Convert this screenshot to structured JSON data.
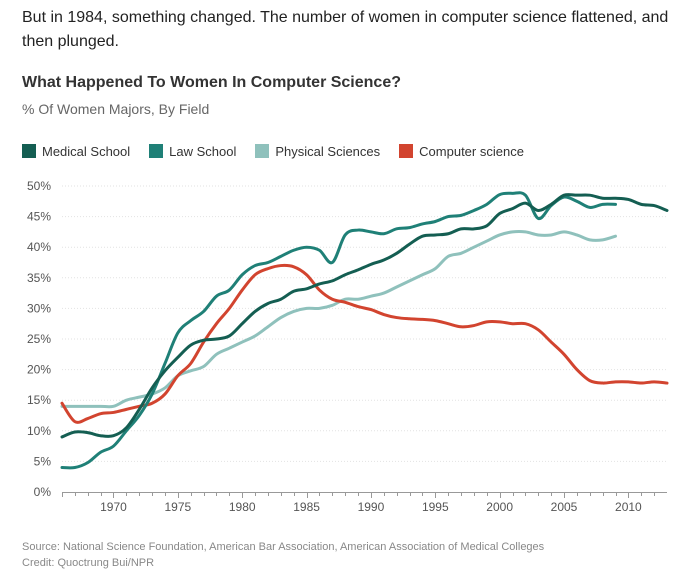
{
  "intro": "But in 1984, something changed. The number of women in computer science flattened, and then plunged.",
  "chart_data": {
    "type": "line",
    "title": "What Happened To Women In Computer Science?",
    "subtitle": "% Of Women Majors, By Field",
    "xlim": [
      1966,
      2013
    ],
    "ylim": [
      0,
      50
    ],
    "x_ticks": [
      1970,
      1975,
      1980,
      1985,
      1990,
      1995,
      2000,
      2005,
      2010
    ],
    "y_ticks": [
      0,
      5,
      10,
      15,
      20,
      25,
      30,
      35,
      40,
      45,
      50
    ],
    "y_tick_labels": [
      "0%",
      "5%",
      "10%",
      "15%",
      "20%",
      "25%",
      "30%",
      "35%",
      "40%",
      "45%",
      "50%"
    ],
    "grid": true,
    "series": [
      {
        "name": "Medical School",
        "color": "#145e52",
        "x": [
          1966,
          1967,
          1968,
          1969,
          1970,
          1971,
          1972,
          1973,
          1974,
          1975,
          1976,
          1977,
          1978,
          1979,
          1980,
          1981,
          1982,
          1983,
          1984,
          1985,
          1986,
          1987,
          1988,
          1989,
          1990,
          1991,
          1992,
          1993,
          1994,
          1995,
          1996,
          1997,
          1998,
          1999,
          2000,
          2001,
          2002,
          2003,
          2004,
          2005,
          2006,
          2007,
          2008,
          2009,
          2010,
          2011,
          2012,
          2013
        ],
        "values": [
          9,
          9.8,
          9.7,
          9.2,
          9.2,
          10.5,
          13.5,
          17,
          19.8,
          22,
          24,
          24.8,
          25,
          25.5,
          27.5,
          29.5,
          30.8,
          31.5,
          32.8,
          33.2,
          34,
          34.5,
          35.5,
          36.3,
          37.2,
          37.9,
          39,
          40.5,
          41.8,
          42,
          42.2,
          43,
          43,
          43.5,
          45.5,
          46.3,
          47.2,
          46,
          47,
          48.5,
          48.5,
          48.5,
          48,
          48,
          47.8,
          47,
          46.8,
          46
        ]
      },
      {
        "name": "Law School",
        "color": "#1f8077",
        "x": [
          1966,
          1967,
          1968,
          1969,
          1970,
          1971,
          1972,
          1973,
          1974,
          1975,
          1976,
          1977,
          1978,
          1979,
          1980,
          1981,
          1982,
          1983,
          1984,
          1985,
          1986,
          1987,
          1988,
          1989,
          1990,
          1991,
          1992,
          1993,
          1994,
          1995,
          1996,
          1997,
          1998,
          1999,
          2000,
          2001,
          2002,
          2003,
          2004,
          2005,
          2006,
          2007,
          2008,
          2009
        ],
        "values": [
          4,
          4,
          4.8,
          6.5,
          7.5,
          10,
          12.5,
          16,
          21,
          26,
          28,
          29.5,
          32,
          33,
          35.5,
          37,
          37.5,
          38.5,
          39.5,
          40,
          39.5,
          37.5,
          42,
          42.8,
          42.5,
          42.2,
          43,
          43.2,
          43.8,
          44.2,
          45,
          45.2,
          46,
          47,
          48.6,
          48.8,
          48.5,
          44.7,
          46.8,
          48.2,
          47.5,
          46.5,
          47,
          47
        ]
      },
      {
        "name": "Physical Sciences",
        "color": "#8fc1bc",
        "x": [
          1966,
          1967,
          1968,
          1969,
          1970,
          1971,
          1972,
          1973,
          1974,
          1975,
          1976,
          1977,
          1978,
          1979,
          1980,
          1981,
          1982,
          1983,
          1984,
          1985,
          1986,
          1987,
          1988,
          1989,
          1990,
          1991,
          1992,
          1993,
          1994,
          1995,
          1996,
          1997,
          1998,
          1999,
          2000,
          2001,
          2002,
          2003,
          2004,
          2005,
          2006,
          2007,
          2008,
          2009
        ],
        "values": [
          14,
          14,
          14,
          14,
          14,
          15,
          15.5,
          16,
          17,
          19,
          19.8,
          20.5,
          22.5,
          23.5,
          24.5,
          25.5,
          27,
          28.5,
          29.5,
          30,
          30,
          30.5,
          31.5,
          31.5,
          32,
          32.5,
          33.5,
          34.5,
          35.5,
          36.5,
          38.5,
          39,
          40,
          41,
          42,
          42.5,
          42.5,
          42,
          42,
          42.5,
          42,
          41.2,
          41.2,
          41.8
        ]
      },
      {
        "name": "Computer science",
        "color": "#d2442f",
        "x": [
          1966,
          1967,
          1968,
          1969,
          1970,
          1971,
          1972,
          1973,
          1974,
          1975,
          1976,
          1977,
          1978,
          1979,
          1980,
          1981,
          1982,
          1983,
          1984,
          1985,
          1986,
          1987,
          1988,
          1989,
          1990,
          1991,
          1992,
          1993,
          1994,
          1995,
          1996,
          1997,
          1998,
          1999,
          2000,
          2001,
          2002,
          2003,
          2004,
          2005,
          2006,
          2007,
          2008,
          2009,
          2010,
          2011,
          2012,
          2013
        ],
        "values": [
          14.5,
          11.5,
          12,
          12.8,
          13,
          13.5,
          14,
          14.5,
          16,
          19,
          21,
          24.5,
          27.5,
          30,
          33,
          35.5,
          36.5,
          37,
          36.8,
          35.5,
          33,
          31.5,
          31,
          30.3,
          29.8,
          29,
          28.5,
          28.3,
          28.2,
          28,
          27.5,
          27,
          27.2,
          27.8,
          27.8,
          27.5,
          27.5,
          26.5,
          24.5,
          22.5,
          20,
          18.2,
          17.8,
          18,
          18,
          17.8,
          18,
          17.8
        ]
      }
    ]
  },
  "source": "Source: National Science Foundation, American Bar Association, American Association of Medical Colleges",
  "credit": "Credit: Quoctrung Bui/NPR"
}
